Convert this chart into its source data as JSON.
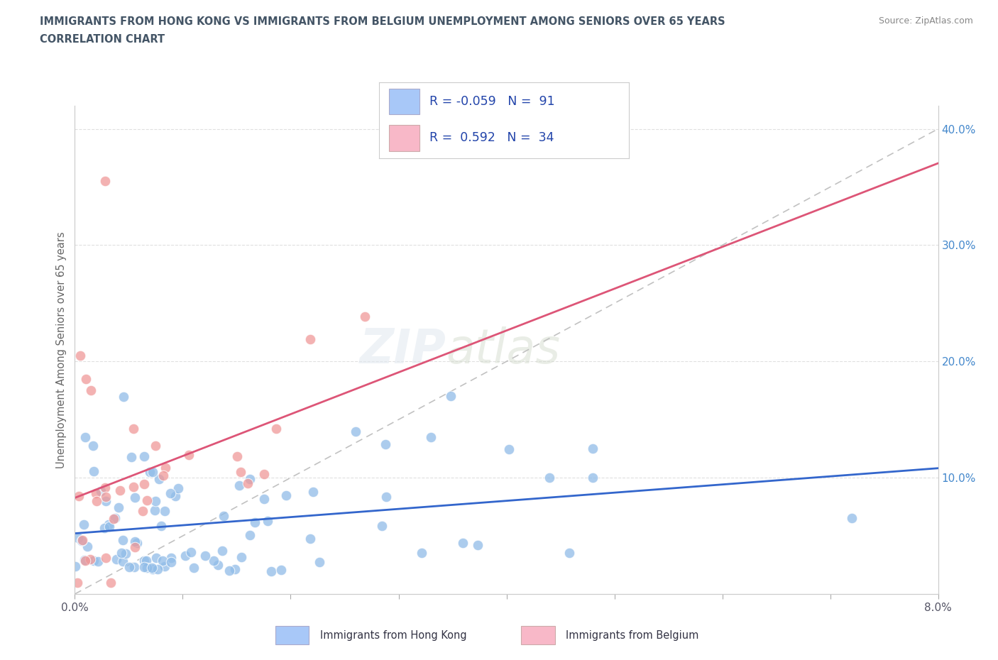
{
  "title_line1": "IMMIGRANTS FROM HONG KONG VS IMMIGRANTS FROM BELGIUM UNEMPLOYMENT AMONG SENIORS OVER 65 YEARS",
  "title_line2": "CORRELATION CHART",
  "source_text": "Source: ZipAtlas.com",
  "ylabel": "Unemployment Among Seniors over 65 years",
  "xlim": [
    0.0,
    0.08
  ],
  "ylim": [
    0.0,
    0.42
  ],
  "yticks_right": [
    0.1,
    0.2,
    0.3,
    0.4
  ],
  "ytick_right_labels": [
    "10.0%",
    "20.0%",
    "30.0%",
    "40.0%"
  ],
  "watermark_zip": "ZIP",
  "watermark_atlas": "atlas",
  "legend_hk_color": "#a8c8f8",
  "legend_bel_color": "#f8b8c8",
  "hk_R": -0.059,
  "hk_N": 91,
  "bel_R": 0.592,
  "bel_N": 34,
  "dot_color_hk": "#90bce8",
  "dot_color_bel": "#f09898",
  "trend_color_hk": "#3366cc",
  "trend_color_bel": "#dd5577",
  "ref_line_color": "#bbbbbb",
  "background_color": "#ffffff",
  "grid_color": "#dddddd",
  "title_color": "#445566",
  "source_color": "#888888",
  "right_tick_color": "#4488cc",
  "ylabel_color": "#666666"
}
